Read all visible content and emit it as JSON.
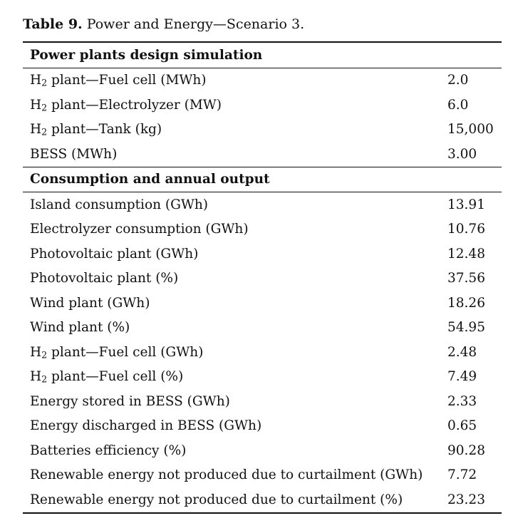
{
  "caption": {
    "label": "Table 9.",
    "title": " Power and Energy—Scenario 3."
  },
  "table": {
    "sections": [
      {
        "heading": "Power plants design simulation",
        "rows": [
          {
            "prefix": "H",
            "sub": "2",
            "text": " plant—Fuel cell (MWh)",
            "value": "2.0"
          },
          {
            "prefix": "H",
            "sub": "2",
            "text": " plant—Electrolyzer (MW)",
            "value": "6.0"
          },
          {
            "prefix": "H",
            "sub": "2",
            "text": " plant—Tank (kg)",
            "value": "15,000"
          },
          {
            "prefix": "",
            "sub": "",
            "text": "BESS (MWh)",
            "value": "3.00"
          }
        ]
      },
      {
        "heading": "Consumption and annual output",
        "rows": [
          {
            "prefix": "",
            "sub": "",
            "text": "Island consumption (GWh)",
            "value": "13.91"
          },
          {
            "prefix": "",
            "sub": "",
            "text": "Electrolyzer consumption (GWh)",
            "value": "10.76"
          },
          {
            "prefix": "",
            "sub": "",
            "text": "Photovoltaic plant (GWh)",
            "value": "12.48"
          },
          {
            "prefix": "",
            "sub": "",
            "text": "Photovoltaic plant (%)",
            "value": "37.56"
          },
          {
            "prefix": "",
            "sub": "",
            "text": "Wind plant (GWh)",
            "value": "18.26"
          },
          {
            "prefix": "",
            "sub": "",
            "text": "Wind plant (%)",
            "value": "54.95"
          },
          {
            "prefix": "H",
            "sub": "2",
            "text": " plant—Fuel cell (GWh)",
            "value": "2.48"
          },
          {
            "prefix": "H",
            "sub": "2",
            "text": " plant—Fuel cell (%)",
            "value": "7.49"
          },
          {
            "prefix": "",
            "sub": "",
            "text": "Energy stored in BESS (GWh)",
            "value": "2.33"
          },
          {
            "prefix": "",
            "sub": "",
            "text": "Energy discharged in BESS (GWh)",
            "value": "0.65"
          },
          {
            "prefix": "",
            "sub": "",
            "text": "Batteries efficiency (%)",
            "value": "90.28"
          },
          {
            "prefix": "",
            "sub": "",
            "text": "Renewable energy not produced due to curtailment (GWh)",
            "value": "7.72"
          },
          {
            "prefix": "",
            "sub": "",
            "text": "Renewable energy not produced due to curtailment (%)",
            "value": "23.23"
          }
        ]
      }
    ]
  }
}
